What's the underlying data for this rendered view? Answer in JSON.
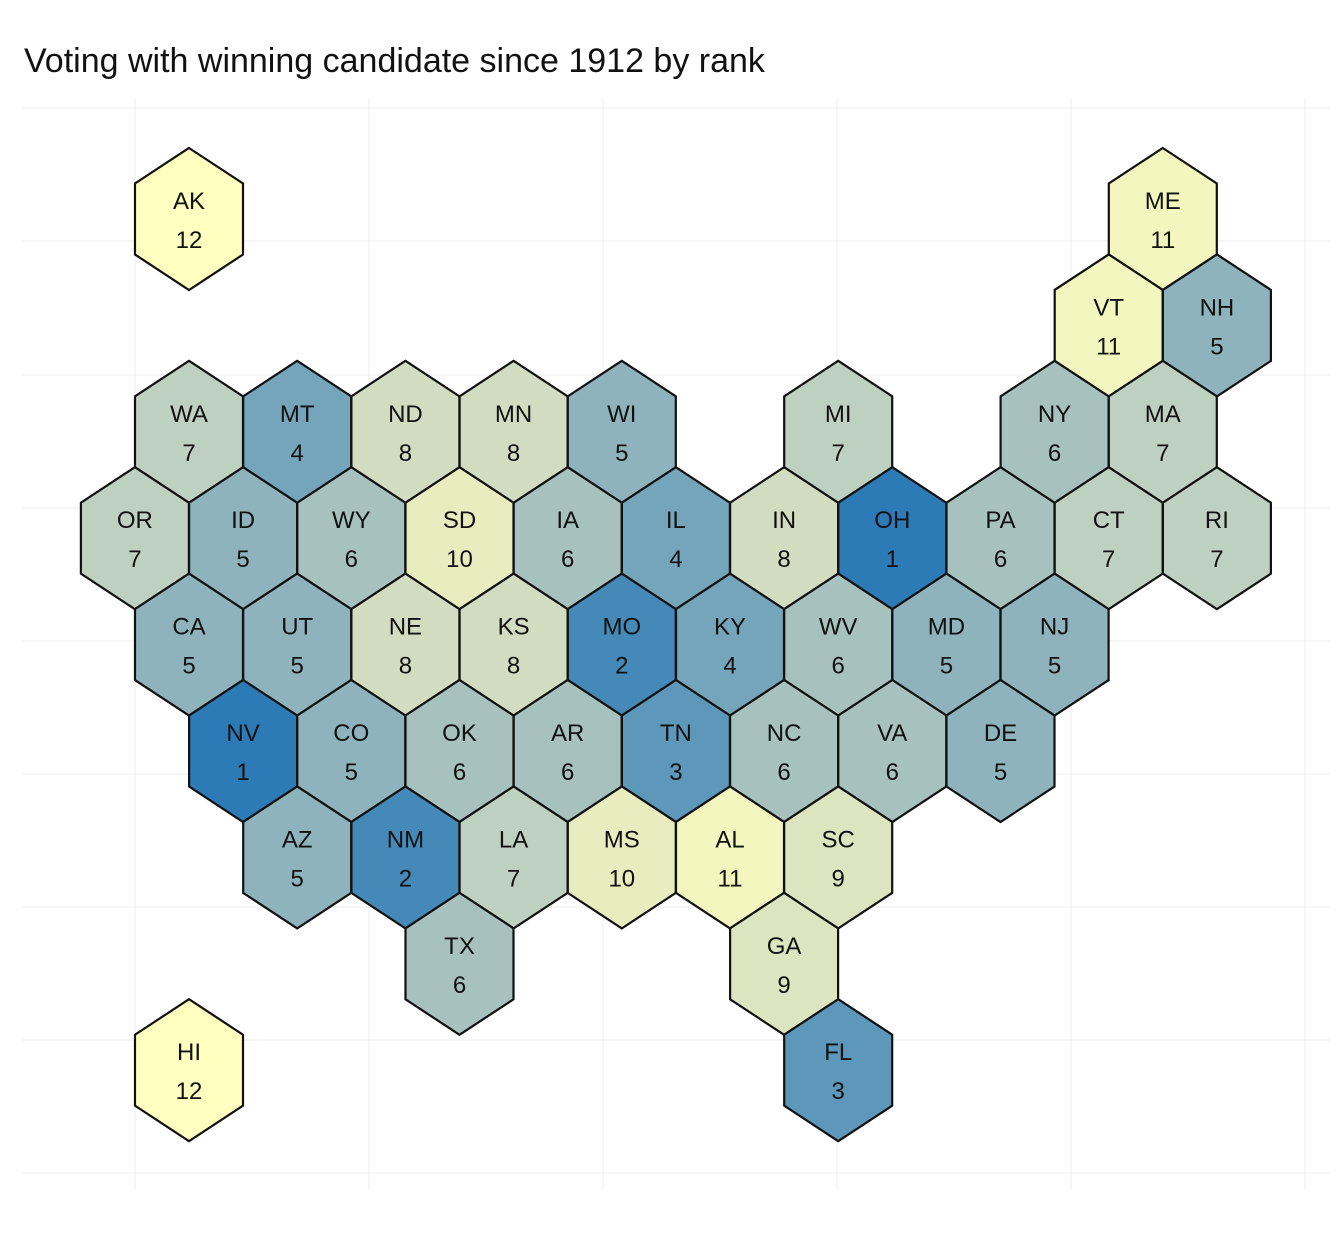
{
  "chart_data": {
    "type": "hexbin-map",
    "title": "Voting with winning candidate since 1912 by rank",
    "value_label": "rank",
    "color_scale": {
      "low_color": "#2c7bb6",
      "mid_color": "#cdd8c0",
      "high_color": "#ffffbf",
      "domain": [
        1,
        12
      ]
    },
    "grid": true,
    "legend": "none",
    "states": [
      {
        "abbr": "AK",
        "rank": 12,
        "col": 0,
        "row": 0
      },
      {
        "abbr": "ME",
        "rank": 11,
        "col": 18,
        "row": 0
      },
      {
        "abbr": "VT",
        "rank": 11,
        "col": 17,
        "row": 1
      },
      {
        "abbr": "NH",
        "rank": 5,
        "col": 19,
        "row": 1
      },
      {
        "abbr": "WA",
        "rank": 7,
        "col": 0,
        "row": 2
      },
      {
        "abbr": "MT",
        "rank": 4,
        "col": 2,
        "row": 2
      },
      {
        "abbr": "ND",
        "rank": 8,
        "col": 4,
        "row": 2
      },
      {
        "abbr": "MN",
        "rank": 8,
        "col": 6,
        "row": 2
      },
      {
        "abbr": "WI",
        "rank": 5,
        "col": 8,
        "row": 2
      },
      {
        "abbr": "MI",
        "rank": 7,
        "col": 12,
        "row": 2
      },
      {
        "abbr": "NY",
        "rank": 6,
        "col": 16,
        "row": 2
      },
      {
        "abbr": "MA",
        "rank": 7,
        "col": 18,
        "row": 2
      },
      {
        "abbr": "OR",
        "rank": 7,
        "col": -1,
        "row": 3
      },
      {
        "abbr": "ID",
        "rank": 5,
        "col": 1,
        "row": 3
      },
      {
        "abbr": "WY",
        "rank": 6,
        "col": 3,
        "row": 3
      },
      {
        "abbr": "SD",
        "rank": 10,
        "col": 5,
        "row": 3
      },
      {
        "abbr": "IA",
        "rank": 6,
        "col": 7,
        "row": 3
      },
      {
        "abbr": "IL",
        "rank": 4,
        "col": 9,
        "row": 3
      },
      {
        "abbr": "IN",
        "rank": 8,
        "col": 11,
        "row": 3
      },
      {
        "abbr": "OH",
        "rank": 1,
        "col": 13,
        "row": 3
      },
      {
        "abbr": "PA",
        "rank": 6,
        "col": 15,
        "row": 3
      },
      {
        "abbr": "CT",
        "rank": 7,
        "col": 17,
        "row": 3
      },
      {
        "abbr": "RI",
        "rank": 7,
        "col": 19,
        "row": 3
      },
      {
        "abbr": "CA",
        "rank": 5,
        "col": 0,
        "row": 4
      },
      {
        "abbr": "UT",
        "rank": 5,
        "col": 2,
        "row": 4
      },
      {
        "abbr": "NE",
        "rank": 8,
        "col": 4,
        "row": 4
      },
      {
        "abbr": "KS",
        "rank": 8,
        "col": 6,
        "row": 4
      },
      {
        "abbr": "MO",
        "rank": 2,
        "col": 8,
        "row": 4
      },
      {
        "abbr": "KY",
        "rank": 4,
        "col": 10,
        "row": 4
      },
      {
        "abbr": "WV",
        "rank": 6,
        "col": 12,
        "row": 4
      },
      {
        "abbr": "MD",
        "rank": 5,
        "col": 14,
        "row": 4
      },
      {
        "abbr": "NJ",
        "rank": 5,
        "col": 16,
        "row": 4
      },
      {
        "abbr": "NV",
        "rank": 1,
        "col": 1,
        "row": 5
      },
      {
        "abbr": "CO",
        "rank": 5,
        "col": 3,
        "row": 5
      },
      {
        "abbr": "OK",
        "rank": 6,
        "col": 5,
        "row": 5
      },
      {
        "abbr": "AR",
        "rank": 6,
        "col": 7,
        "row": 5
      },
      {
        "abbr": "TN",
        "rank": 3,
        "col": 9,
        "row": 5
      },
      {
        "abbr": "NC",
        "rank": 6,
        "col": 11,
        "row": 5
      },
      {
        "abbr": "VA",
        "rank": 6,
        "col": 13,
        "row": 5
      },
      {
        "abbr": "DE",
        "rank": 5,
        "col": 15,
        "row": 5
      },
      {
        "abbr": "AZ",
        "rank": 5,
        "col": 2,
        "row": 6
      },
      {
        "abbr": "NM",
        "rank": 2,
        "col": 4,
        "row": 6
      },
      {
        "abbr": "LA",
        "rank": 7,
        "col": 6,
        "row": 6
      },
      {
        "abbr": "MS",
        "rank": 10,
        "col": 8,
        "row": 6
      },
      {
        "abbr": "AL",
        "rank": 11,
        "col": 10,
        "row": 6
      },
      {
        "abbr": "SC",
        "rank": 9,
        "col": 12,
        "row": 6
      },
      {
        "abbr": "TX",
        "rank": 6,
        "col": 5,
        "row": 7
      },
      {
        "abbr": "GA",
        "rank": 9,
        "col": 11,
        "row": 7
      },
      {
        "abbr": "HI",
        "rank": 12,
        "col": 0,
        "row": 8
      },
      {
        "abbr": "FL",
        "rank": 3,
        "col": 12,
        "row": 8
      }
    ]
  }
}
